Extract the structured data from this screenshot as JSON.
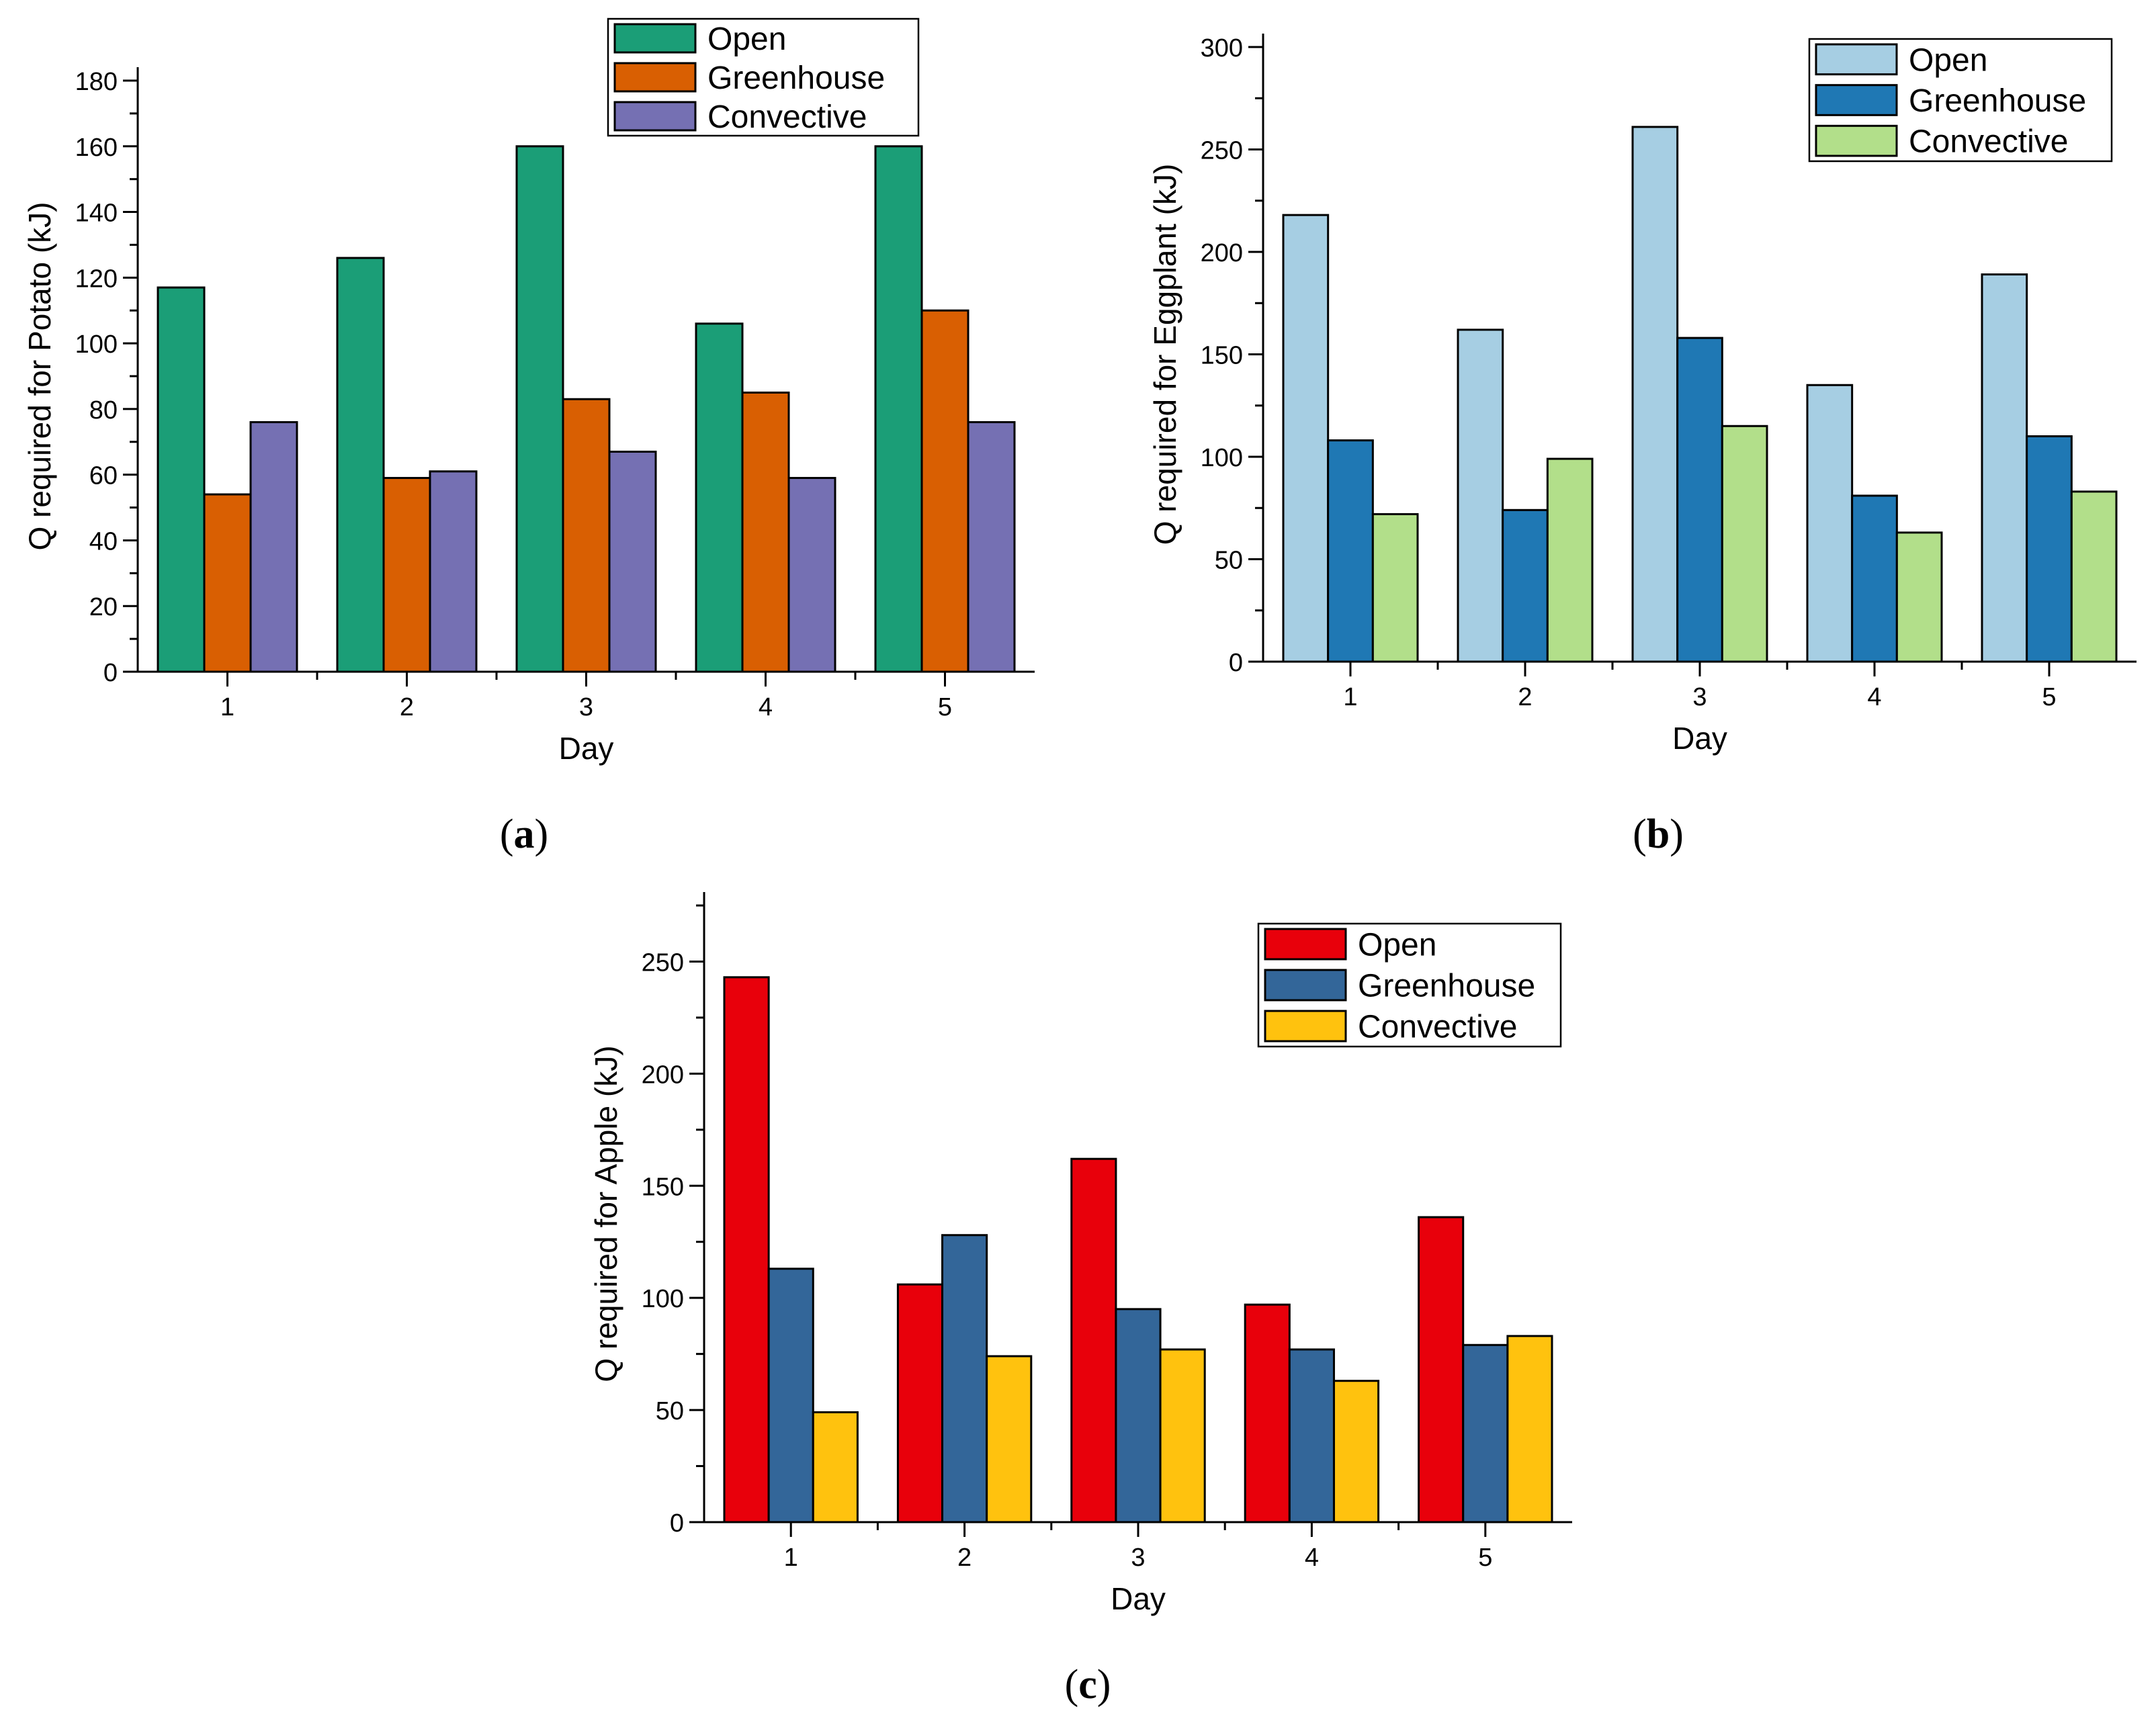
{
  "chart_data": [
    {
      "type": "bar",
      "id": "a",
      "caption": "(a)",
      "caption_letter": "a",
      "xlabel": "Day",
      "ylabel": "Q required for Potato (kJ)",
      "categories": [
        "1",
        "2",
        "3",
        "4",
        "5"
      ],
      "ylim": [
        0,
        180
      ],
      "yticks": [
        0,
        20,
        40,
        60,
        80,
        100,
        120,
        140,
        160,
        180
      ],
      "legend_position": "top-center",
      "grid": false,
      "series": [
        {
          "name": "Open",
          "color": "#1b9e77",
          "values": [
            117,
            126,
            160,
            106,
            160
          ]
        },
        {
          "name": "Greenhouse",
          "color": "#d95f02",
          "values": [
            54,
            59,
            83,
            85,
            110
          ]
        },
        {
          "name": "Convective",
          "color": "#7570b3",
          "values": [
            76,
            61,
            67,
            59,
            76
          ]
        }
      ]
    },
    {
      "type": "bar",
      "id": "b",
      "caption": "(b)",
      "caption_letter": "b",
      "xlabel": "Day",
      "ylabel": "Q required for Eggplant (kJ)",
      "categories": [
        "1",
        "2",
        "3",
        "4",
        "5"
      ],
      "ylim": [
        0,
        300
      ],
      "yticks": [
        0,
        50,
        100,
        150,
        200,
        250,
        300
      ],
      "legend_position": "top-right",
      "grid": false,
      "series": [
        {
          "name": "Open",
          "color": "#a6cee3",
          "values": [
            218,
            162,
            261,
            135,
            189
          ]
        },
        {
          "name": "Greenhouse",
          "color": "#1f78b4",
          "values": [
            108,
            74,
            158,
            81,
            110
          ]
        },
        {
          "name": "Convective",
          "color": "#b2df8a",
          "values": [
            72,
            99,
            115,
            63,
            83
          ]
        }
      ]
    },
    {
      "type": "bar",
      "id": "c",
      "caption": "(c)",
      "caption_letter": "c",
      "xlabel": "Day",
      "ylabel": "Q required for Apple (kJ)",
      "categories": [
        "1",
        "2",
        "3",
        "4",
        "5"
      ],
      "ylim": [
        0,
        275
      ],
      "yticks": [
        0,
        50,
        100,
        150,
        200,
        250
      ],
      "legend_position": "top-right",
      "grid": false,
      "series": [
        {
          "name": "Open",
          "color": "#e8000b",
          "values": [
            243,
            106,
            162,
            97,
            136
          ]
        },
        {
          "name": "Greenhouse",
          "color": "#336699",
          "values": [
            113,
            128,
            95,
            77,
            79
          ]
        },
        {
          "name": "Convective",
          "color": "#ffc20e",
          "values": [
            49,
            74,
            77,
            63,
            83
          ]
        }
      ]
    }
  ]
}
